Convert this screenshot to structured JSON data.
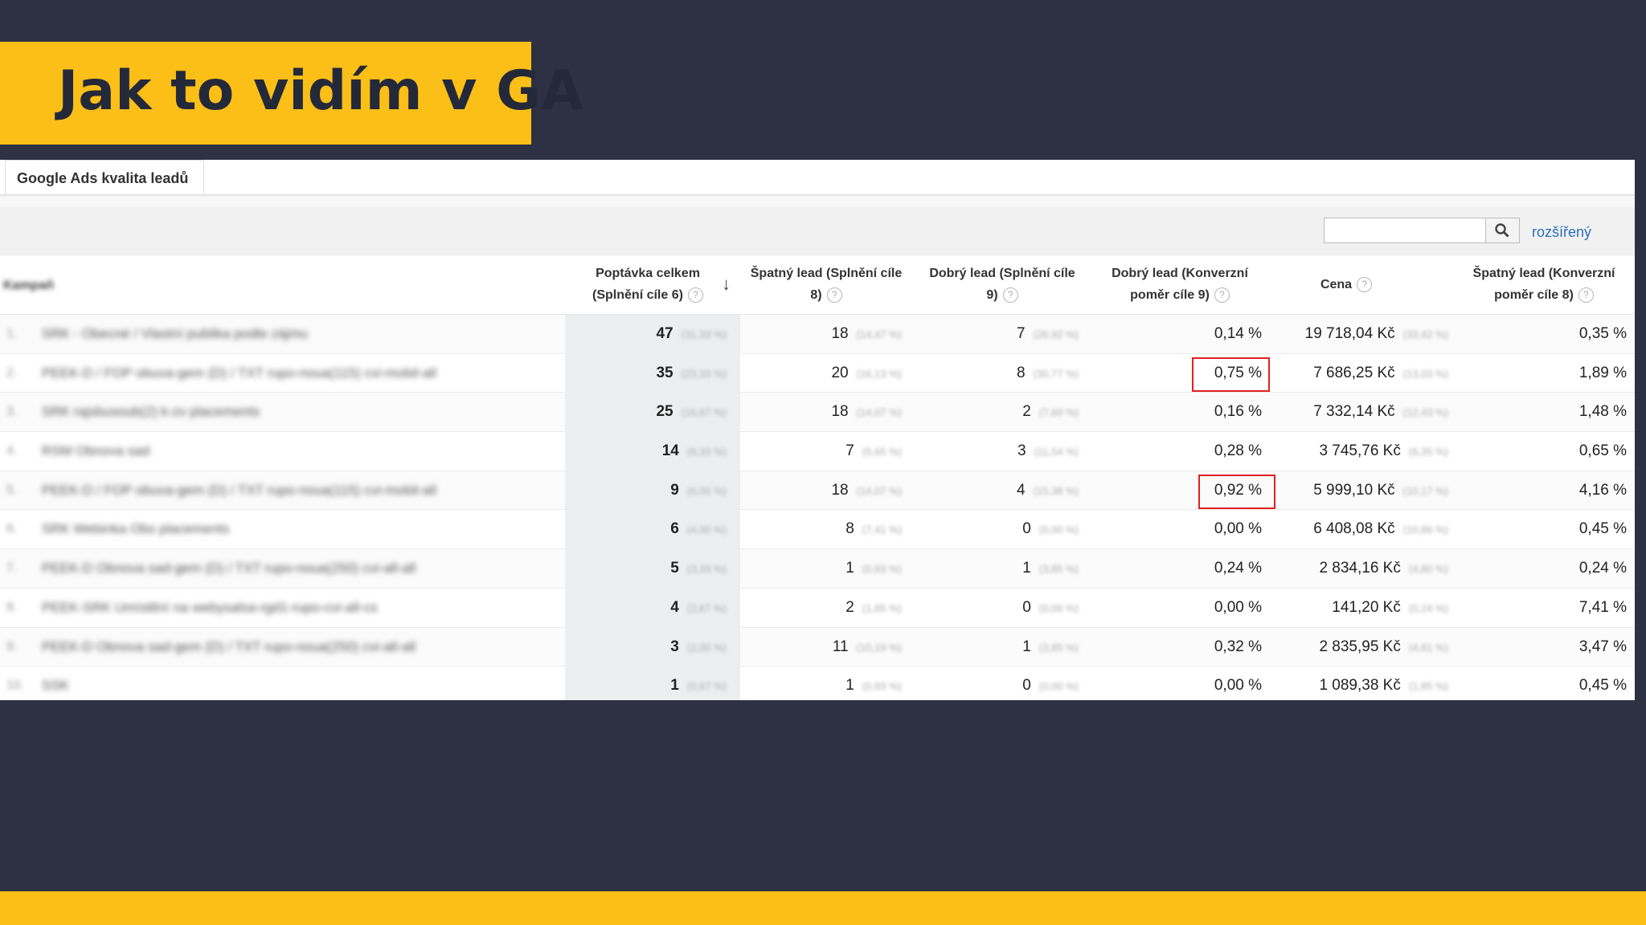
{
  "slide_title": "Jak to vidím v GA",
  "tab_label": "Google Ads kvalita leadů",
  "search": {
    "placeholder": "",
    "advanced_label": "rozšířený"
  },
  "table": {
    "dimension_header": "Kampaň",
    "columns": [
      {
        "line1": "Poptávka celkem",
        "line2": "(Splnění cíle 6)"
      },
      {
        "line1": "Špatný lead (Splnění cíle",
        "line2": "8)"
      },
      {
        "line1": "Dobrý lead (Splnění cíle",
        "line2": "9)"
      },
      {
        "line1": "Dobrý lead (Konverzní",
        "line2": "poměr cíle 9)"
      },
      {
        "line1": "Cena",
        "line2": ""
      },
      {
        "line1": "Špatný lead (Konverzní",
        "line2": "poměr cíle 8)"
      }
    ],
    "rows": [
      {
        "n": "1.",
        "dim": "SRK - Obecné / Vlastní publika podle zájmu",
        "v1": "47",
        "p1": "(31,33 %)",
        "v2": "18",
        "p2": "(14,47 %)",
        "v3": "7",
        "p3": "(26,92 %)",
        "v4": "0,14 %",
        "v5": "19 718,04 Kč",
        "p5": "(33,42 %)",
        "v6": "0,35 %"
      },
      {
        "n": "2.",
        "dim": "PEEK-D / FOP obuva-gem (D) / TXT rupo-noua(115) cvi-mobil-all",
        "v1": "35",
        "p1": "(23,33 %)",
        "v2": "20",
        "p2": "(16,13 %)",
        "v3": "8",
        "p3": "(30,77 %)",
        "v4": "0,75 %",
        "v5": "7 686,25 Kč",
        "p5": "(13,03 %)",
        "v6": "1,89 %"
      },
      {
        "n": "3.",
        "dim": "SRK rajsbusoub(2) k-zv placements",
        "v1": "25",
        "p1": "(16,67 %)",
        "v2": "18",
        "p2": "(14,07 %)",
        "v3": "2",
        "p3": "(7,69 %)",
        "v4": "0,16 %",
        "v5": "7 332,14 Kč",
        "p5": "(12,43 %)",
        "v6": "1,48 %"
      },
      {
        "n": "4.",
        "dim": "RSM Obnova sad",
        "v1": "14",
        "p1": "(9,33 %)",
        "v2": "7",
        "p2": "(5,65 %)",
        "v3": "3",
        "p3": "(11,54 %)",
        "v4": "0,28 %",
        "v5": "3 745,76 Kč",
        "p5": "(6,35 %)",
        "v6": "0,65 %"
      },
      {
        "n": "5.",
        "dim": "PEEK-D / FOP obuva-gem (D) / TXT rupo-noua(115) cvi-mobil-all",
        "v1": "9",
        "p1": "(6,00 %)",
        "v2": "18",
        "p2": "(14,07 %)",
        "v3": "4",
        "p3": "(15,38 %)",
        "v4": "0,92 %",
        "v5": "5 999,10 Kč",
        "p5": "(10,17 %)",
        "v6": "4,16 %"
      },
      {
        "n": "6.",
        "dim": "SRK Webinka Obs placements",
        "v1": "6",
        "p1": "(4,00 %)",
        "v2": "8",
        "p2": "(7,41 %)",
        "v3": "0",
        "p3": "(0,00 %)",
        "v4": "0,00 %",
        "v5": "6 408,08 Kč",
        "p5": "(10,86 %)",
        "v6": "0,45 %"
      },
      {
        "n": "7.",
        "dim": "PEEK-D Obnova sad-gem (D) / TXT rupo-noua(250) cvi-all-all",
        "v1": "5",
        "p1": "(3,33 %)",
        "v2": "1",
        "p2": "(0,93 %)",
        "v3": "1",
        "p3": "(3,85 %)",
        "v4": "0,24 %",
        "v5": "2 834,16 Kč",
        "p5": "(4,80 %)",
        "v6": "0,24 %"
      },
      {
        "n": "8.",
        "dim": "PEEK-SRK Umístění na webysalsa-rgd1-rupo-cvi-all-cs",
        "v1": "4",
        "p1": "(2,67 %)",
        "v2": "2",
        "p2": "(1,85 %)",
        "v3": "0",
        "p3": "(0,00 %)",
        "v4": "0,00 %",
        "v5": "141,20 Kč",
        "p5": "(0,24 %)",
        "v6": "7,41 %"
      },
      {
        "n": "9.",
        "dim": "PEEK-D Obnova sad-gem (D) / TXT rupo-noua(250) cvi-all-all",
        "v1": "3",
        "p1": "(2,00 %)",
        "v2": "11",
        "p2": "(10,19 %)",
        "v3": "1",
        "p3": "(3,85 %)",
        "v4": "0,32 %",
        "v5": "2 835,95 Kč",
        "p5": "(4,81 %)",
        "v6": "3,47 %"
      },
      {
        "n": "10.",
        "dim": "SSK",
        "v1": "1",
        "p1": "(0,67 %)",
        "v2": "1",
        "p2": "(0,93 %)",
        "v3": "0",
        "p3": "(0,00 %)",
        "v4": "0,00 %",
        "v5": "1 089,38 Kč",
        "p5": "(1,85 %)",
        "v6": "0,45 %"
      }
    ]
  },
  "highlighted_cells": [
    "0,75 %",
    "0,92 %"
  ],
  "colors": {
    "accent_yellow": "#fbbf17",
    "background_dark": "#2d3143",
    "highlight_red": "#e02020"
  }
}
